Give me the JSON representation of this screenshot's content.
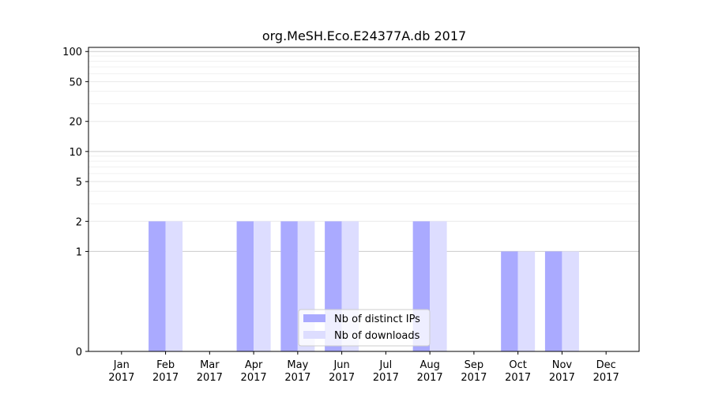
{
  "chart_data": {
    "type": "bar",
    "title": "org.MeSH.Eco.E24377A.db 2017",
    "xlabel": "",
    "ylabel": "",
    "y_scale": "symlog",
    "y_ticks": [
      0,
      1,
      2,
      5,
      10,
      20,
      50,
      100
    ],
    "y_tick_labels": [
      "0",
      "1",
      "2",
      "5",
      "10",
      "20",
      "50",
      "100"
    ],
    "ylim": [
      0,
      110
    ],
    "categories": [
      {
        "month": "Jan",
        "year": "2017"
      },
      {
        "month": "Feb",
        "year": "2017"
      },
      {
        "month": "Mar",
        "year": "2017"
      },
      {
        "month": "Apr",
        "year": "2017"
      },
      {
        "month": "May",
        "year": "2017"
      },
      {
        "month": "Jun",
        "year": "2017"
      },
      {
        "month": "Jul",
        "year": "2017"
      },
      {
        "month": "Aug",
        "year": "2017"
      },
      {
        "month": "Sep",
        "year": "2017"
      },
      {
        "month": "Oct",
        "year": "2017"
      },
      {
        "month": "Nov",
        "year": "2017"
      },
      {
        "month": "Dec",
        "year": "2017"
      }
    ],
    "series": [
      {
        "name": "Nb of distinct IPs",
        "color": "#aaaaff",
        "values": [
          0,
          2,
          0,
          2,
          2,
          2,
          0,
          2,
          0,
          1,
          1,
          0
        ]
      },
      {
        "name": "Nb of downloads",
        "color": "#ddddff",
        "values": [
          0,
          2,
          0,
          2,
          2,
          2,
          0,
          2,
          0,
          1,
          1,
          0
        ]
      }
    ],
    "legend_position": "lower-center",
    "grid": "horizontal"
  }
}
